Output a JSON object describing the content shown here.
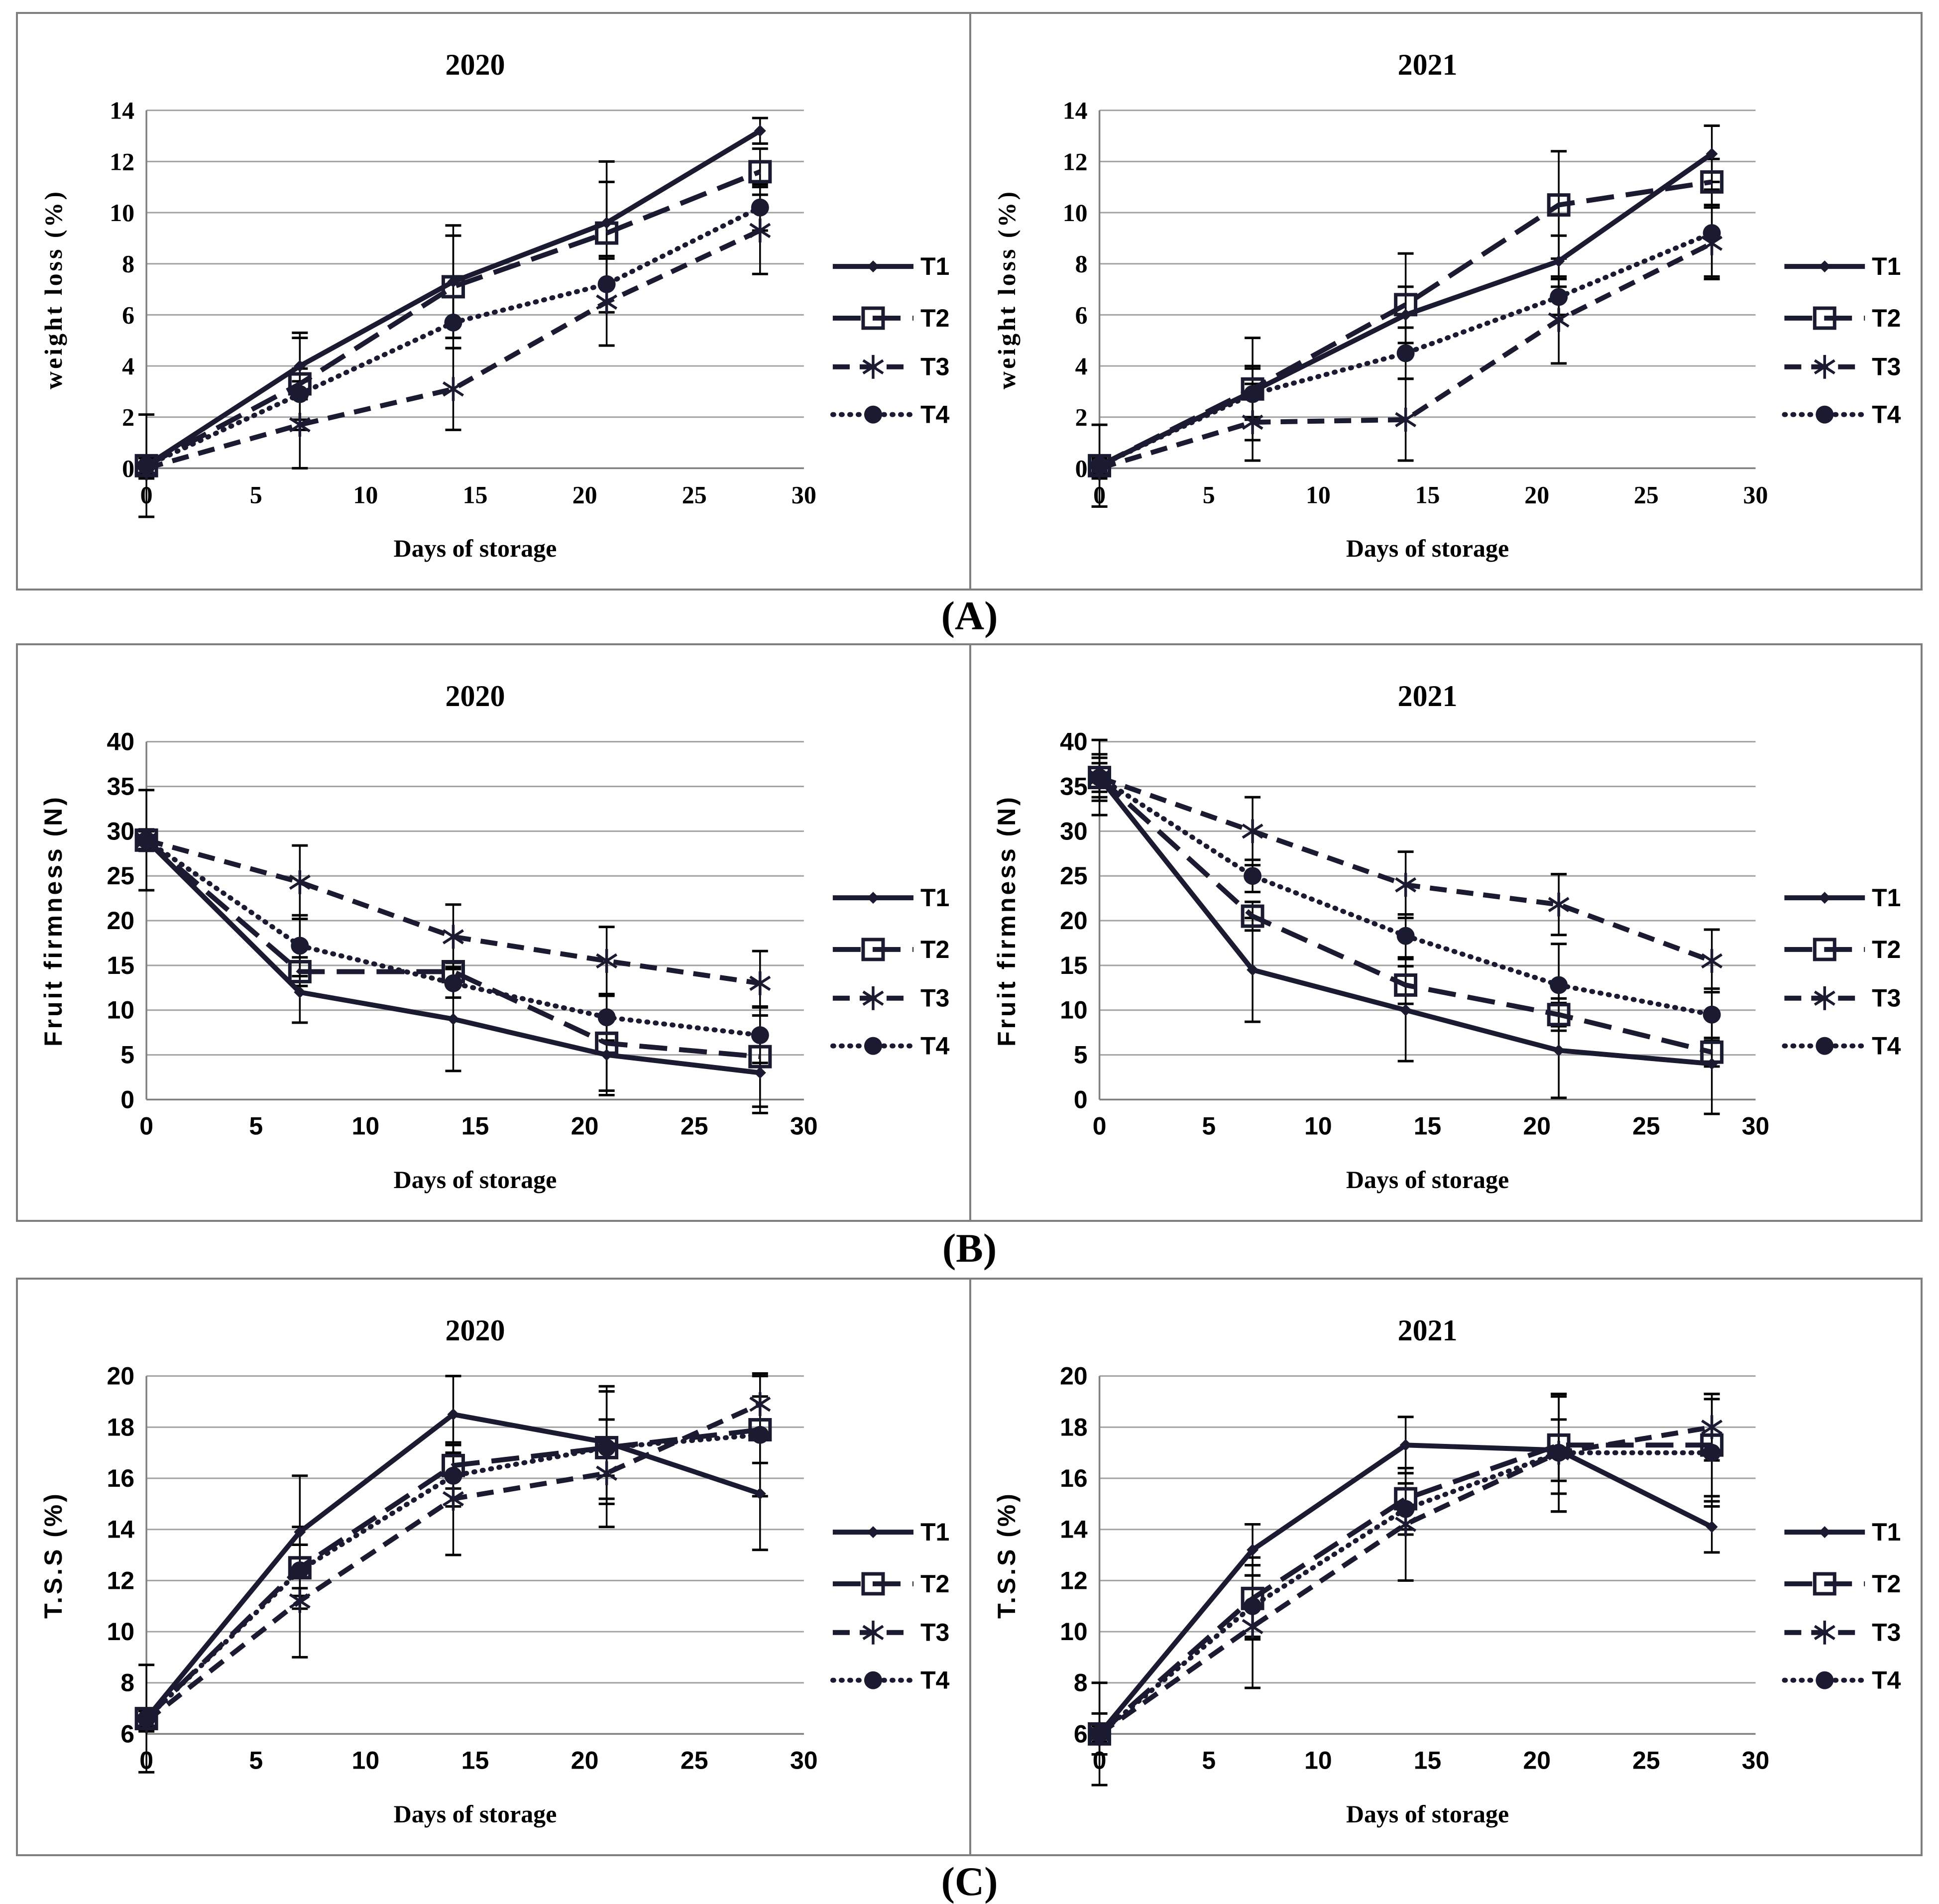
{
  "figure": {
    "panels": [
      {
        "label": "(A)",
        "measure": "weight loss (%)"
      },
      {
        "label": "(B)",
        "measure": "Fruit firmness (N)"
      },
      {
        "label": "(C)",
        "measure": "T.S.S (%)"
      }
    ]
  },
  "style": {
    "line_color": "#1a1a30",
    "grid_color": "#a3a3a3",
    "axis_color": "#808080",
    "error_bar_color": "#000000",
    "text_color": "#000000",
    "border_color": "#7f7f7f",
    "background": "#ffffff"
  },
  "chart_data": [
    {
      "type": "line",
      "title": "2020",
      "xlabel": "Days of storage",
      "ylabel": "weight loss (%)",
      "x": [
        0,
        7,
        14,
        21,
        28
      ],
      "xlim": [
        0,
        30
      ],
      "xticks": [
        0,
        5,
        10,
        15,
        20,
        25,
        30
      ],
      "ylim": [
        0,
        14
      ],
      "yticks": [
        0,
        2,
        4,
        6,
        8,
        10,
        12,
        14
      ],
      "grid": true,
      "legend_position": "right",
      "tick_font": "serif",
      "label_font": "serif",
      "series": [
        {
          "name": "T1",
          "line": "solid",
          "marker": "diamond",
          "values": [
            0.1,
            4.0,
            7.3,
            9.6,
            13.2
          ],
          "errors": [
            0.3,
            1.3,
            2.2,
            2.4,
            0.5
          ]
        },
        {
          "name": "T2",
          "line": "long-dash",
          "marker": "open-square",
          "values": [
            0.1,
            3.3,
            7.1,
            9.2,
            11.6
          ],
          "errors": [
            2.0,
            1.8,
            2.0,
            2.0,
            0.9
          ]
        },
        {
          "name": "T3",
          "line": "dash",
          "marker": "asterisk",
          "values": [
            0.0,
            1.7,
            3.1,
            6.5,
            9.3
          ],
          "errors": [
            0.4,
            1.7,
            1.6,
            1.7,
            1.7
          ]
        },
        {
          "name": "T4",
          "line": "dotted",
          "marker": "filled-circle",
          "values": [
            0.1,
            2.9,
            5.7,
            7.2,
            10.2
          ],
          "errors": [
            0.3,
            1.0,
            1.0,
            1.1,
            0.9
          ]
        }
      ]
    },
    {
      "type": "line",
      "title": "2021",
      "xlabel": "Days of storage",
      "ylabel": "weight loss (%)",
      "x": [
        0,
        7,
        14,
        21,
        28
      ],
      "xlim": [
        0,
        30
      ],
      "xticks": [
        0,
        5,
        10,
        15,
        20,
        25,
        30
      ],
      "ylim": [
        0,
        14
      ],
      "yticks": [
        0,
        2,
        4,
        6,
        8,
        10,
        12,
        14
      ],
      "grid": true,
      "legend_position": "right",
      "tick_font": "serif",
      "label_font": "serif",
      "series": [
        {
          "name": "T1",
          "line": "solid",
          "marker": "diamond",
          "values": [
            0.1,
            3.0,
            6.0,
            8.1,
            12.3
          ],
          "errors": [
            0.2,
            1.0,
            1.1,
            1.0,
            1.1
          ]
        },
        {
          "name": "T2",
          "line": "long-dash",
          "marker": "open-square",
          "values": [
            0.1,
            3.1,
            6.4,
            10.3,
            11.2
          ],
          "errors": [
            1.6,
            2.0,
            2.0,
            2.1,
            0.9
          ]
        },
        {
          "name": "T3",
          "line": "dash",
          "marker": "asterisk",
          "values": [
            0.0,
            1.8,
            1.9,
            5.8,
            8.8
          ],
          "errors": [
            0.4,
            1.5,
            1.6,
            1.7,
            1.4
          ]
        },
        {
          "name": "T4",
          "line": "dotted",
          "marker": "filled-circle",
          "values": [
            0.1,
            2.9,
            4.5,
            6.7,
            9.2
          ],
          "errors": [
            0.3,
            1.0,
            1.0,
            0.7,
            1.7
          ]
        }
      ]
    },
    {
      "type": "line",
      "title": "2020",
      "xlabel": "Days of storage",
      "ylabel": "Fruit firmness (N)",
      "x": [
        0,
        7,
        14,
        21,
        28
      ],
      "xlim": [
        0,
        30
      ],
      "xticks": [
        0,
        5,
        10,
        15,
        20,
        25,
        30
      ],
      "ylim": [
        0,
        40
      ],
      "yticks": [
        0,
        5,
        10,
        15,
        20,
        25,
        30,
        35,
        40
      ],
      "grid": true,
      "legend_position": "right",
      "tick_font": "sans",
      "label_font": "sans",
      "series": [
        {
          "name": "T1",
          "line": "solid",
          "marker": "diamond",
          "values": [
            29,
            12,
            9,
            5,
            3
          ],
          "errors": [
            5.6,
            3.4,
            5.8,
            4.5,
            4.5
          ]
        },
        {
          "name": "T2",
          "line": "long-dash",
          "marker": "open-square",
          "values": [
            29,
            14.3,
            14.3,
            6.3,
            4.8
          ],
          "errors": [
            1.2,
            1.6,
            1.0,
            5.3,
            5.6
          ]
        },
        {
          "name": "T3",
          "line": "dash",
          "marker": "asterisk",
          "values": [
            29,
            24.3,
            18.2,
            15.5,
            13
          ],
          "errors": [
            1.0,
            4.1,
            3.6,
            3.8,
            3.6
          ]
        },
        {
          "name": "T4",
          "line": "dotted",
          "marker": "filled-circle",
          "values": [
            29,
            17.2,
            13,
            9.2,
            7.2
          ],
          "errors": [
            1.0,
            3.4,
            1.6,
            2.6,
            3.1
          ]
        }
      ]
    },
    {
      "type": "line",
      "title": "2021",
      "xlabel": "Days of storage",
      "ylabel": "Fruit firmness (N)",
      "x": [
        0,
        7,
        14,
        21,
        28
      ],
      "xlim": [
        0,
        30
      ],
      "xticks": [
        0,
        5,
        10,
        15,
        20,
        25,
        30
      ],
      "ylim": [
        0,
        40
      ],
      "yticks": [
        0,
        5,
        10,
        15,
        20,
        25,
        30,
        35,
        40
      ],
      "grid": true,
      "legend_position": "right",
      "tick_font": "sans",
      "label_font": "sans",
      "series": [
        {
          "name": "T1",
          "line": "solid",
          "marker": "diamond",
          "values": [
            36,
            14.5,
            10,
            5.5,
            4
          ],
          "errors": [
            4.2,
            5.8,
            5.7,
            5.3,
            5.6
          ]
        },
        {
          "name": "T2",
          "line": "long-dash",
          "marker": "open-square",
          "values": [
            36,
            20.5,
            12.8,
            9.5,
            5.3
          ],
          "errors": [
            2.2,
            1.6,
            2.1,
            1.8,
            1.6
          ]
        },
        {
          "name": "T3",
          "line": "dash",
          "marker": "asterisk",
          "values": [
            36,
            30,
            24,
            21.8,
            15.5
          ],
          "errors": [
            2.6,
            3.8,
            3.7,
            3.4,
            3.5
          ]
        },
        {
          "name": "T4",
          "line": "dotted",
          "marker": "filled-circle",
          "values": [
            36,
            25,
            18.3,
            12.8,
            9.5
          ],
          "errors": [
            1.6,
            1.8,
            2.4,
            4.6,
            2.9
          ]
        }
      ]
    },
    {
      "type": "line",
      "title": "2020",
      "xlabel": "Days of storage",
      "ylabel": "T.S.S (%)",
      "x": [
        0,
        7,
        14,
        21,
        28
      ],
      "xlim": [
        0,
        30
      ],
      "xticks": [
        0,
        5,
        10,
        15,
        20,
        25,
        30
      ],
      "ylim": [
        6,
        20
      ],
      "yticks": [
        6,
        8,
        10,
        12,
        14,
        16,
        18,
        20
      ],
      "grid": true,
      "legend_position": "right",
      "tick_font": "sans",
      "label_font": "sans",
      "series": [
        {
          "name": "T1",
          "line": "solid",
          "marker": "diamond",
          "values": [
            6.6,
            13.9,
            18.5,
            17.4,
            15.4
          ],
          "errors": [
            0.4,
            2.2,
            1.5,
            2.2,
            2.2
          ]
        },
        {
          "name": "T2",
          "line": "long-dash",
          "marker": "open-square",
          "values": [
            6.6,
            12.5,
            16.5,
            17.2,
            17.9
          ],
          "errors": [
            2.1,
            1.6,
            0.9,
            2.2,
            1.3
          ]
        },
        {
          "name": "T3",
          "line": "dash",
          "marker": "asterisk",
          "values": [
            6.5,
            11.2,
            15.2,
            16.2,
            18.9
          ],
          "errors": [
            0.4,
            2.2,
            2.2,
            2.1,
            1.1
          ]
        },
        {
          "name": "T4",
          "line": "dotted",
          "marker": "filled-circle",
          "values": [
            6.6,
            12.4,
            16.1,
            17.2,
            17.7
          ],
          "errors": [
            0.3,
            1.0,
            1.2,
            1.1,
            2.4
          ]
        }
      ]
    },
    {
      "type": "line",
      "title": "2021",
      "xlabel": "Days of storage",
      "ylabel": "T.S.S (%)",
      "x": [
        0,
        7,
        14,
        21,
        28
      ],
      "xlim": [
        0,
        30
      ],
      "xticks": [
        0,
        5,
        10,
        15,
        20,
        25,
        30
      ],
      "ylim": [
        6,
        20
      ],
      "yticks": [
        6,
        8,
        10,
        12,
        14,
        16,
        18,
        20
      ],
      "grid": true,
      "legend_position": "right",
      "tick_font": "sans",
      "label_font": "sans",
      "series": [
        {
          "name": "T1",
          "line": "solid",
          "marker": "diamond",
          "values": [
            6.0,
            13.2,
            17.3,
            17.1,
            14.1
          ],
          "errors": [
            2.0,
            1.0,
            1.1,
            1.2,
            1.0
          ]
        },
        {
          "name": "T2",
          "line": "long-dash",
          "marker": "open-square",
          "values": [
            6.0,
            11.3,
            15.2,
            17.3,
            17.3
          ],
          "errors": [
            0.4,
            1.6,
            1.2,
            1.9,
            2.0
          ]
        },
        {
          "name": "T3",
          "line": "dash",
          "marker": "asterisk",
          "values": [
            6.0,
            10.2,
            14.2,
            17.0,
            18.0
          ],
          "errors": [
            0.8,
            2.4,
            2.2,
            2.3,
            1.3
          ]
        },
        {
          "name": "T4",
          "line": "dotted",
          "marker": "filled-circle",
          "values": [
            6.0,
            11.0,
            14.8,
            17.0,
            17.0
          ],
          "errors": [
            0.3,
            1.2,
            1.0,
            2.3,
            2.1
          ]
        }
      ]
    }
  ]
}
